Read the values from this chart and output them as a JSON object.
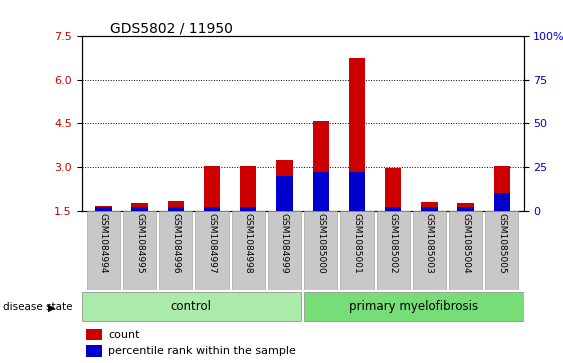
{
  "title": "GDS5802 / 11950",
  "samples": [
    "GSM1084994",
    "GSM1084995",
    "GSM1084996",
    "GSM1084997",
    "GSM1084998",
    "GSM1084999",
    "GSM1085000",
    "GSM1085001",
    "GSM1085002",
    "GSM1085003",
    "GSM1085004",
    "GSM1085005"
  ],
  "count_values": [
    1.65,
    1.75,
    1.82,
    3.05,
    3.04,
    3.25,
    4.6,
    6.75,
    2.95,
    1.78,
    1.76,
    3.03
  ],
  "percentile_values": [
    2.0,
    2.0,
    2.0,
    2.0,
    2.0,
    20.0,
    22.0,
    22.0,
    2.0,
    2.0,
    2.0,
    10.0
  ],
  "ylim_left": [
    1.5,
    7.5
  ],
  "ylim_right": [
    0,
    100
  ],
  "yticks_left": [
    1.5,
    3.0,
    4.5,
    6.0,
    7.5
  ],
  "yticks_right": [
    0,
    25,
    50,
    75,
    100
  ],
  "yticklabels_right": [
    "0",
    "25",
    "50",
    "75",
    "100%"
  ],
  "bar_color_count": "#cc0000",
  "bar_color_percentile": "#0000cc",
  "bar_width": 0.45,
  "background_plot": "#ffffff",
  "xtick_bg_color": "#c8c8c8",
  "control_color": "#aaeaaa",
  "pmf_color": "#77dd77",
  "disease_state_label": "disease state",
  "control_label": "control",
  "pmf_label": "primary myelofibrosis",
  "legend_count": "count",
  "legend_percentile": "percentile rank within the sample",
  "title_fontsize": 10
}
